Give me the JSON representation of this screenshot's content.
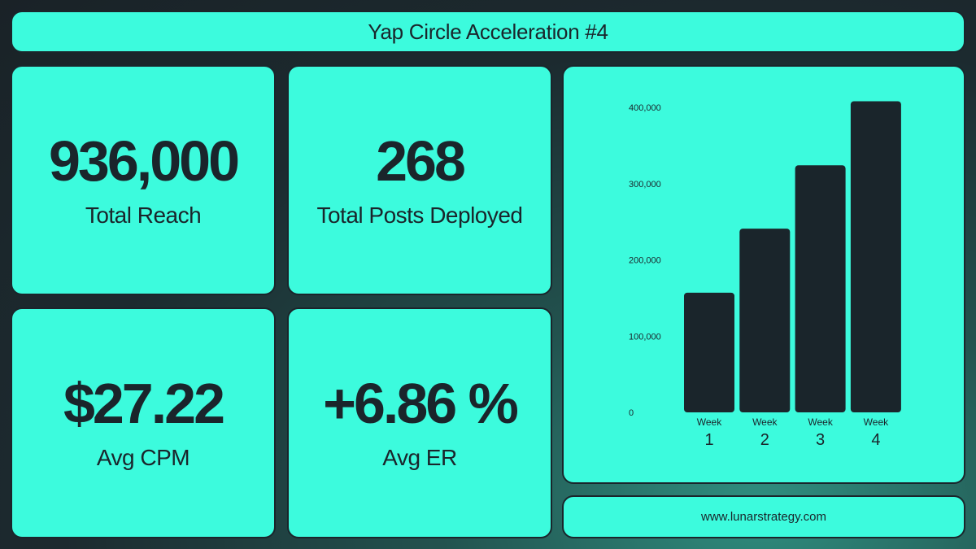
{
  "header": {
    "title": "Yap Circle Acceleration #4"
  },
  "stats": {
    "reach": {
      "value": "936,000",
      "label": "Total Reach"
    },
    "posts": {
      "value": "268",
      "label": "Total Posts Deployed"
    },
    "cpm": {
      "value": "$27.22",
      "label": "Avg CPM"
    },
    "er": {
      "value": "+6.86 %",
      "label": "Avg ER"
    }
  },
  "footer": {
    "website": "www.lunarstrategy.com"
  },
  "colors": {
    "card": "#3cfbdd",
    "dark": "#1a252b"
  },
  "chart_data": {
    "type": "bar",
    "categories": [
      {
        "prefix": "Week",
        "number": "1"
      },
      {
        "prefix": "Week",
        "number": "2"
      },
      {
        "prefix": "Week",
        "number": "3"
      },
      {
        "prefix": "Week",
        "number": "4"
      }
    ],
    "values": [
      157000,
      241000,
      324000,
      408000
    ],
    "ylim": [
      0,
      400000
    ],
    "yticks": [
      0,
      100000,
      200000,
      300000,
      400000
    ],
    "ytick_labels": [
      "0",
      "100,000",
      "200,000",
      "300,000",
      "400,000"
    ],
    "grid": false,
    "legend": "none"
  }
}
